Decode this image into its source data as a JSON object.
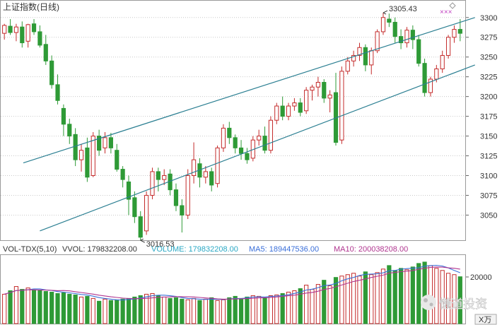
{
  "title": "上证指数(日线)",
  "marker_icon": "diamond-icon",
  "colors": {
    "up": "#c42b2b",
    "down": "#2e9a36",
    "channel": "#2b7f92",
    "grid": "#c9c9c9",
    "ma5": "#3a6fd9",
    "ma10": "#b0358f",
    "vol_label": "#2aa8c4",
    "text": "#333333"
  },
  "annotations": {
    "high_label": "3305.43",
    "low_label": "3016.53",
    "signal_marks": "×××"
  },
  "volume_panel": {
    "indicator": "VOL-TDX(5,10)",
    "vvol": "VVOL: 179832208.00",
    "volume": "VOLUME: 179832208.00",
    "ma5": "MA5: 189447536.00",
    "ma10": "MA10: 200038208.00",
    "axis_label": "20000",
    "unit_button": "X万"
  },
  "watermark": "懒道投资",
  "chart_data": [
    {
      "type": "candlestick",
      "title": "上证指数(日线)",
      "ylim": [
        3020,
        3315
      ],
      "yticks": [
        3050,
        3075,
        3100,
        3125,
        3150,
        3175,
        3200,
        3225,
        3250,
        3275,
        3300
      ],
      "ohlc": [
        [
          3280,
          3292,
          3272,
          3290
        ],
        [
          3289,
          3298,
          3278,
          3281
        ],
        [
          3281,
          3292,
          3270,
          3288
        ],
        [
          3288,
          3295,
          3262,
          3268
        ],
        [
          3270,
          3292,
          3262,
          3291
        ],
        [
          3292,
          3298,
          3278,
          3282
        ],
        [
          3282,
          3290,
          3262,
          3265
        ],
        [
          3266,
          3278,
          3240,
          3245
        ],
        [
          3245,
          3252,
          3210,
          3215
        ],
        [
          3215,
          3228,
          3190,
          3195
        ],
        [
          3185,
          3190,
          3150,
          3165
        ],
        [
          3165,
          3172,
          3140,
          3150
        ],
        [
          3152,
          3160,
          3112,
          3120
        ],
        [
          3120,
          3140,
          3105,
          3132
        ],
        [
          3135,
          3148,
          3092,
          3098
        ],
        [
          3100,
          3155,
          3098,
          3150
        ],
        [
          3150,
          3158,
          3125,
          3132
        ],
        [
          3135,
          3155,
          3128,
          3148
        ],
        [
          3148,
          3154,
          3128,
          3135
        ],
        [
          3132,
          3140,
          3105,
          3108
        ],
        [
          3108,
          3112,
          3085,
          3095
        ],
        [
          3092,
          3100,
          3050,
          3070
        ],
        [
          3072,
          3080,
          3040,
          3048
        ],
        [
          3048,
          3055,
          3018,
          3022
        ],
        [
          3030,
          3080,
          3025,
          3075
        ],
        [
          3075,
          3110,
          3070,
          3105
        ],
        [
          3105,
          3110,
          3080,
          3095
        ],
        [
          3095,
          3108,
          3088,
          3100
        ],
        [
          3102,
          3108,
          3075,
          3082
        ],
        [
          3082,
          3090,
          3055,
          3062
        ],
        [
          3062,
          3070,
          3028,
          3050
        ],
        [
          3050,
          3108,
          3045,
          3100
        ],
        [
          3100,
          3142,
          3090,
          3120
        ],
        [
          3115,
          3122,
          3085,
          3098
        ],
        [
          3098,
          3112,
          3090,
          3105
        ],
        [
          3105,
          3110,
          3080,
          3088
        ],
        [
          3090,
          3138,
          3085,
          3135
        ],
        [
          3135,
          3165,
          3130,
          3160
        ],
        [
          3160,
          3168,
          3140,
          3148
        ],
        [
          3148,
          3152,
          3128,
          3135
        ],
        [
          3135,
          3145,
          3120,
          3128
        ],
        [
          3128,
          3135,
          3115,
          3120
        ],
        [
          3122,
          3150,
          3118,
          3145
        ],
        [
          3145,
          3158,
          3138,
          3150
        ],
        [
          3150,
          3162,
          3128,
          3132
        ],
        [
          3132,
          3175,
          3128,
          3170
        ],
        [
          3170,
          3192,
          3165,
          3188
        ],
        [
          3188,
          3200,
          3170,
          3175
        ],
        [
          3175,
          3192,
          3170,
          3188
        ],
        [
          3188,
          3198,
          3182,
          3192
        ],
        [
          3192,
          3198,
          3175,
          3180
        ],
        [
          3182,
          3212,
          3178,
          3208
        ],
        [
          3208,
          3215,
          3195,
          3212
        ],
        [
          3212,
          3225,
          3200,
          3218
        ],
        [
          3218,
          3222,
          3192,
          3198
        ],
        [
          3198,
          3208,
          3180,
          3202
        ],
        [
          3205,
          3230,
          3138,
          3142
        ],
        [
          3145,
          3238,
          3140,
          3232
        ],
        [
          3232,
          3250,
          3228,
          3245
        ],
        [
          3245,
          3258,
          3238,
          3252
        ],
        [
          3252,
          3268,
          3245,
          3262
        ],
        [
          3262,
          3266,
          3232,
          3240
        ],
        [
          3240,
          3262,
          3228,
          3258
        ],
        [
          3258,
          3285,
          3255,
          3282
        ],
        [
          3282,
          3306,
          3278,
          3300
        ],
        [
          3298,
          3305,
          3288,
          3294
        ],
        [
          3294,
          3300,
          3268,
          3276
        ],
        [
          3276,
          3285,
          3260,
          3268
        ],
        [
          3268,
          3288,
          3262,
          3284
        ],
        [
          3284,
          3290,
          3260,
          3272
        ],
        [
          3272,
          3278,
          3238,
          3242
        ],
        [
          3242,
          3248,
          3200,
          3205
        ],
        [
          3205,
          3225,
          3200,
          3222
        ],
        [
          3222,
          3240,
          3218,
          3235
        ],
        [
          3235,
          3258,
          3230,
          3252
        ],
        [
          3252,
          3278,
          3248,
          3275
        ],
        [
          3275,
          3290,
          3268,
          3285
        ],
        [
          3285,
          3298,
          3270,
          3280
        ]
      ],
      "volume": [
        0.42,
        0.47,
        0.53,
        0.49,
        0.51,
        0.48,
        0.47,
        0.46,
        0.45,
        0.43,
        0.44,
        0.42,
        0.41,
        0.38,
        0.39,
        0.36,
        0.32,
        0.35,
        0.33,
        0.34,
        0.35,
        0.36,
        0.38,
        0.4,
        0.42,
        0.43,
        0.4,
        0.38,
        0.36,
        0.37,
        0.35,
        0.34,
        0.36,
        0.33,
        0.35,
        0.37,
        0.33,
        0.34,
        0.37,
        0.39,
        0.36,
        0.38,
        0.4,
        0.39,
        0.37,
        0.4,
        0.41,
        0.43,
        0.45,
        0.47,
        0.5,
        0.55,
        0.49,
        0.56,
        0.62,
        0.54,
        0.66,
        0.68,
        0.7,
        0.72,
        0.68,
        0.74,
        0.7,
        0.73,
        0.78,
        0.83,
        0.76,
        0.79,
        0.77,
        0.81,
        0.86,
        0.88,
        0.83,
        0.79,
        0.76,
        0.72,
        0.7,
        0.67
      ],
      "channel": {
        "upper": [
          {
            "x": 3.2,
            "y": 3116
          },
          {
            "x": 79.5,
            "y": 3300
          }
        ],
        "lower": [
          {
            "x": 6.0,
            "y": 3030
          },
          {
            "x": 79.5,
            "y": 3240
          }
        ]
      },
      "high": {
        "index": 64,
        "value": 3305.43
      },
      "low": {
        "index": 23,
        "value": 3016.53
      }
    }
  ]
}
